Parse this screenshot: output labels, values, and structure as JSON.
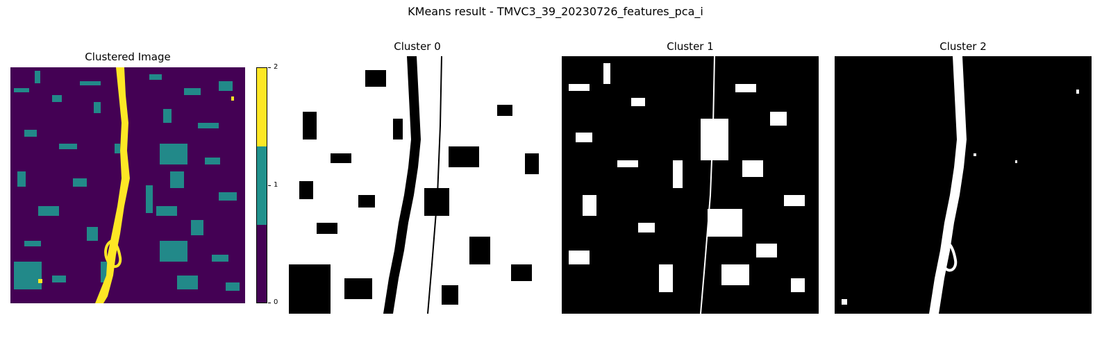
{
  "figure": {
    "title": "KMeans result - TMVC3_39_20230726_features_pca_i"
  },
  "panels": {
    "clustered": {
      "title": "Clustered Image"
    },
    "cluster0": {
      "title": "Cluster 0"
    },
    "cluster1": {
      "title": "Cluster 1"
    },
    "cluster2": {
      "title": "Cluster 2"
    }
  },
  "colorbar": {
    "ticks": [
      "0",
      "1",
      "2"
    ],
    "colors": {
      "0": "#440154",
      "1": "#21918c",
      "2": "#fde725"
    }
  },
  "colors": {
    "mask_on": "#ffffff",
    "mask_off": "#000000"
  }
}
